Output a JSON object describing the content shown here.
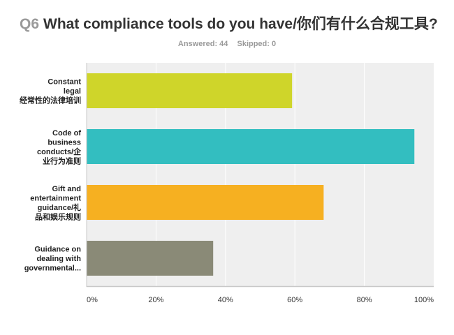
{
  "question": {
    "number": "Q6",
    "text": "What compliance tools do you have/你们有什么合规工具?"
  },
  "stats": {
    "answered": "Answered: 44",
    "skipped": "Skipped: 0"
  },
  "colors": {
    "plot_bg": "#efefef",
    "gridline": "#ffffff",
    "axis": "#c8c8c8"
  },
  "chart_data": {
    "type": "bar",
    "orientation": "horizontal",
    "categories": [
      [
        "Constant",
        "legal",
        "经常性的法律培训"
      ],
      [
        "Code of",
        "business",
        "conducts/企",
        "业行为准则"
      ],
      [
        "Gift and",
        "entertainment",
        "guidance/礼",
        "品和娱乐规则"
      ],
      [
        "Guidance on",
        "dealing with",
        "governmental..."
      ]
    ],
    "values": [
      59.09,
      94.32,
      68.18,
      36.36
    ],
    "bar_colors": [
      "#cfd52a",
      "#33bec0",
      "#f6b021",
      "#8a8a77"
    ],
    "xlim": [
      0,
      100
    ],
    "x_ticks": [
      0,
      20,
      40,
      60,
      80,
      100
    ],
    "x_tick_labels": [
      "0%",
      "20%",
      "40%",
      "60%",
      "80%",
      "100%"
    ],
    "grid": true,
    "xlabel": "",
    "ylabel": ""
  }
}
